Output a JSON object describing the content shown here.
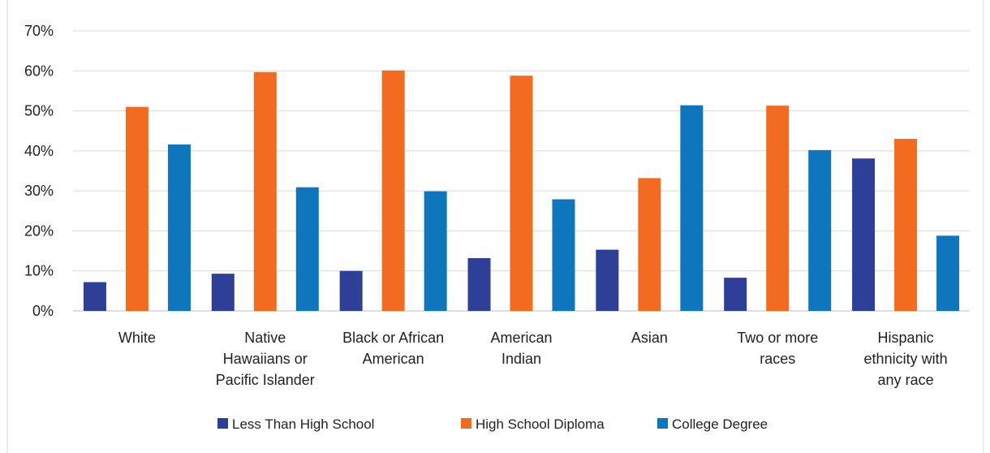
{
  "chart_data": {
    "type": "bar",
    "title": "",
    "xlabel": "",
    "ylabel": "",
    "ylim": [
      0,
      70
    ],
    "y_ticks": [
      "0%",
      "10%",
      "20%",
      "30%",
      "40%",
      "50%",
      "60%",
      "70%"
    ],
    "grid": true,
    "legend_position": "bottom",
    "categories": [
      [
        "White"
      ],
      [
        "Native",
        "Hawaiians or",
        "Pacific Islander"
      ],
      [
        "Black or African",
        "American"
      ],
      [
        "American",
        "Indian"
      ],
      [
        "Asian"
      ],
      [
        "Two or more",
        "races"
      ],
      [
        "Hispanic",
        "ethnicity with",
        "any race"
      ]
    ],
    "series": [
      {
        "name": "Less Than High School",
        "color": "#2e3f98",
        "values": [
          7.2,
          9.3,
          10.0,
          13.2,
          15.3,
          8.3,
          38.1
        ]
      },
      {
        "name": "High School Diploma",
        "color": "#f26b21",
        "values": [
          51.0,
          59.7,
          60.1,
          58.8,
          33.2,
          51.3,
          43.0
        ]
      },
      {
        "name": "College Degree",
        "color": "#0f75bc",
        "values": [
          41.6,
          30.9,
          29.9,
          27.9,
          51.4,
          40.2,
          18.8
        ]
      }
    ]
  }
}
